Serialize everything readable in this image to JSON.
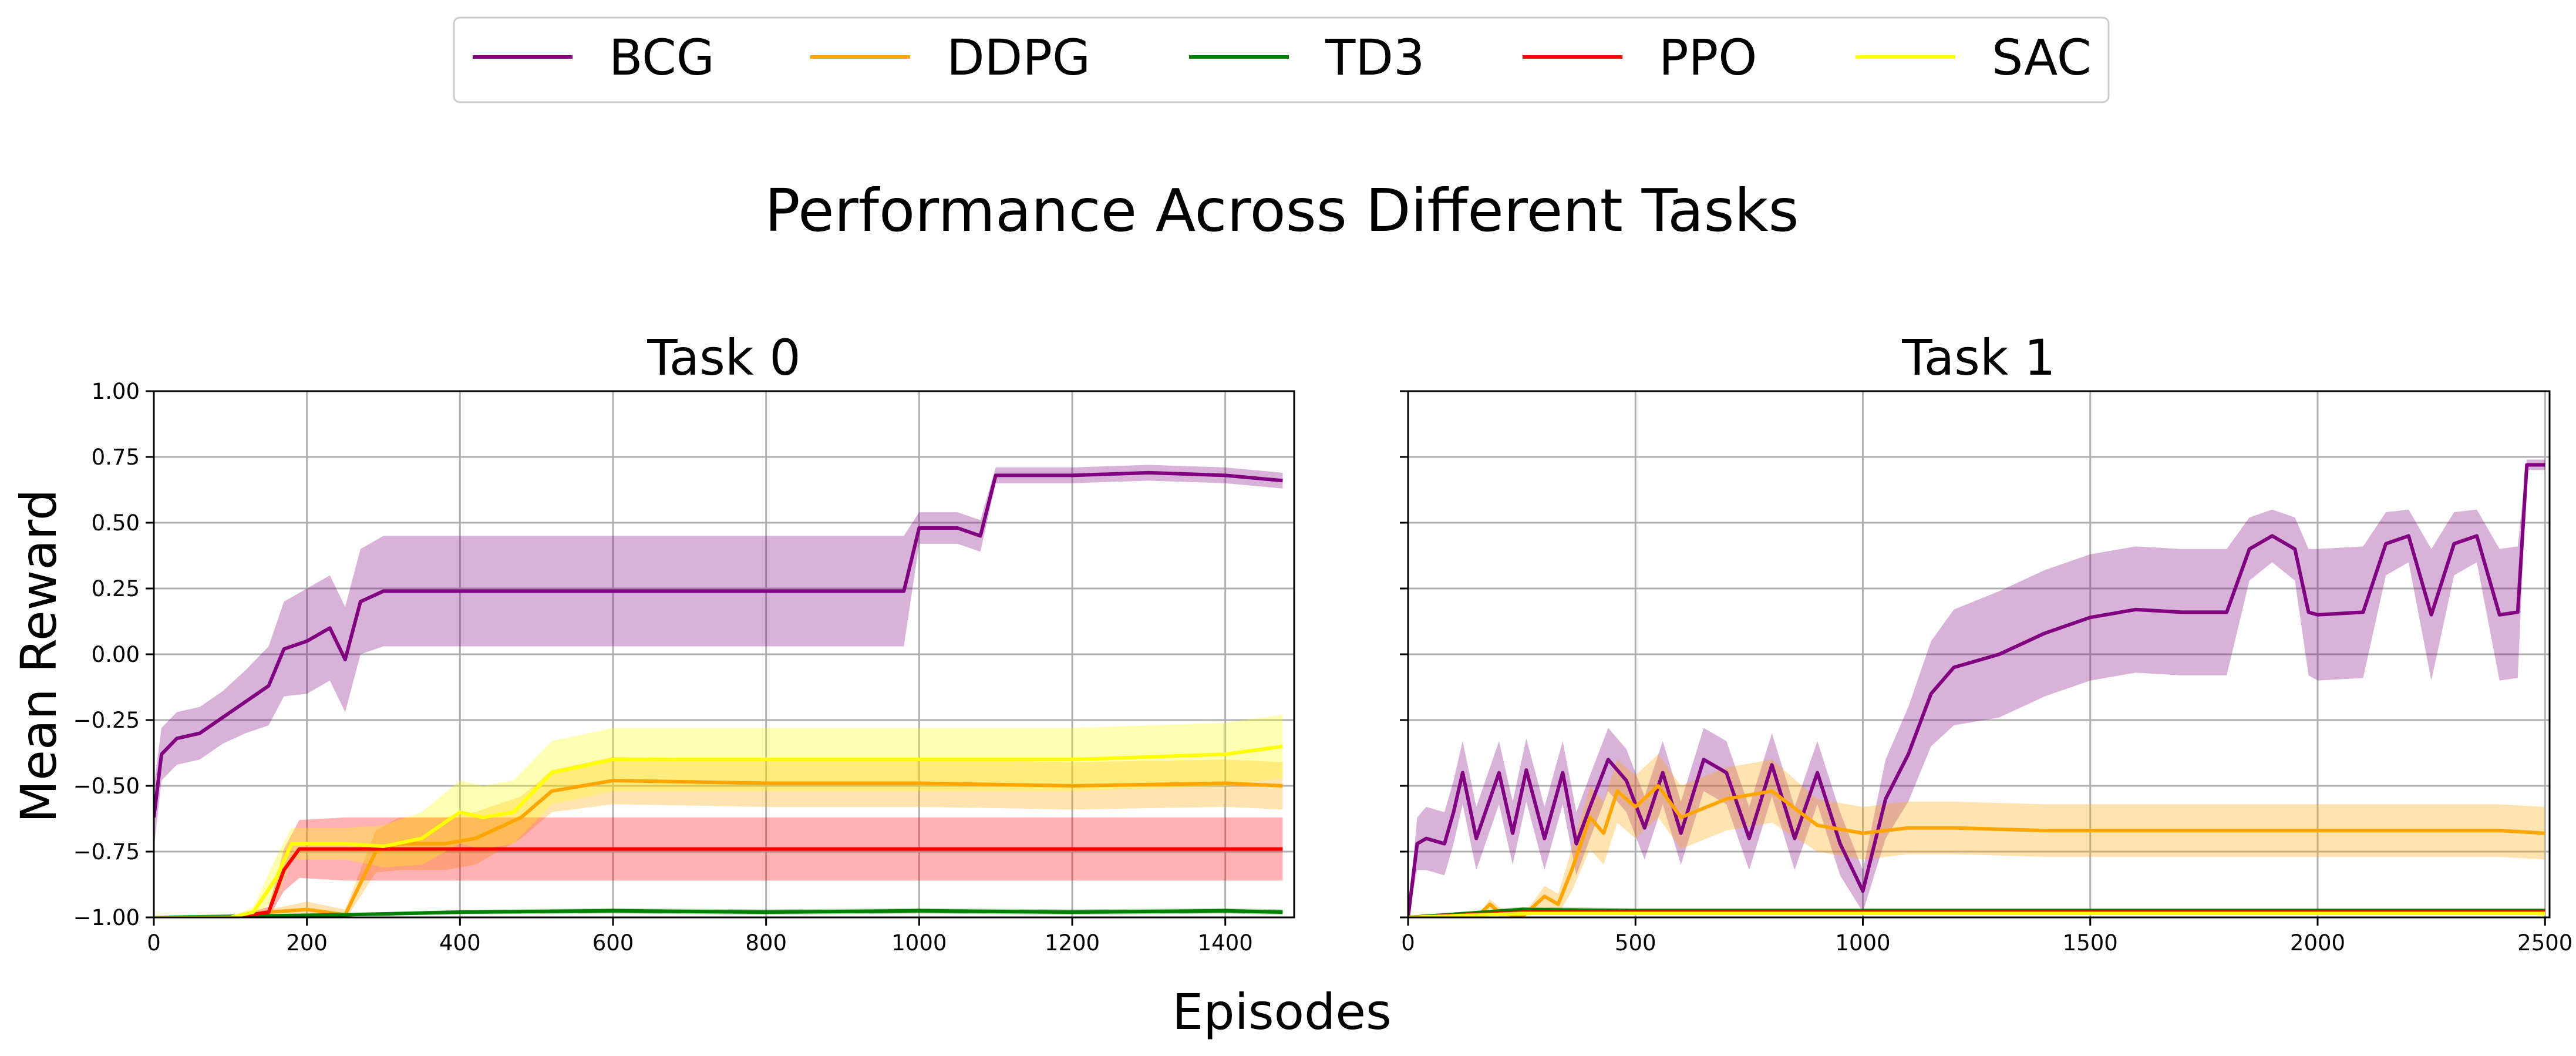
{
  "figure": {
    "suptitle": "Performance Across Different Tasks",
    "xlabel": "Episodes",
    "ylabel": "Mean Reward"
  },
  "legend": {
    "placement": "top-center",
    "items": [
      {
        "label": "BCG",
        "color": "#800080"
      },
      {
        "label": "DDPG",
        "color": "#FFA500"
      },
      {
        "label": "TD3",
        "color": "#008000"
      },
      {
        "label": "PPO",
        "color": "#FF0000"
      },
      {
        "label": "SAC",
        "color": "#FFFF00"
      }
    ]
  },
  "chart_data": [
    {
      "type": "line",
      "title": "Task 0",
      "xlim": [
        0,
        1490
      ],
      "ylim": [
        -1.0,
        1.0
      ],
      "xticks": [
        0,
        200,
        400,
        600,
        800,
        1000,
        1200,
        1400
      ],
      "yticks": [
        -1.0,
        -0.75,
        -0.5,
        -0.25,
        0.0,
        0.25,
        0.5,
        0.75,
        1.0
      ],
      "ytick_labels": [
        "−1.00",
        "−0.75",
        "−0.50",
        "−0.25",
        "0.00",
        "0.25",
        "0.50",
        "0.75",
        "1.00"
      ],
      "grid": true,
      "series": [
        {
          "name": "BCG",
          "color": "#800080",
          "x": [
            0,
            10,
            30,
            60,
            90,
            120,
            150,
            170,
            200,
            230,
            250,
            270,
            300,
            400,
            600,
            800,
            980,
            1000,
            1050,
            1080,
            1100,
            1200,
            1300,
            1400,
            1475
          ],
          "y": [
            -0.62,
            -0.38,
            -0.32,
            -0.3,
            -0.24,
            -0.18,
            -0.12,
            0.02,
            0.05,
            0.1,
            -0.02,
            0.2,
            0.24,
            0.24,
            0.24,
            0.24,
            0.24,
            0.48,
            0.48,
            0.45,
            0.68,
            0.68,
            0.69,
            0.68,
            0.66
          ],
          "band": [
            0.12,
            0.1,
            0.1,
            0.1,
            0.1,
            0.12,
            0.15,
            0.18,
            0.2,
            0.2,
            0.2,
            0.2,
            0.21,
            0.21,
            0.21,
            0.21,
            0.21,
            0.06,
            0.06,
            0.06,
            0.03,
            0.03,
            0.03,
            0.03,
            0.03
          ]
        },
        {
          "name": "DDPG",
          "color": "#FFA500",
          "x": [
            0,
            100,
            150,
            200,
            250,
            290,
            320,
            380,
            420,
            480,
            520,
            600,
            800,
            1000,
            1200,
            1400,
            1475
          ],
          "y": [
            -1.0,
            -1.0,
            -0.98,
            -0.97,
            -0.99,
            -0.75,
            -0.72,
            -0.72,
            -0.7,
            -0.62,
            -0.52,
            -0.48,
            -0.49,
            -0.49,
            -0.5,
            -0.49,
            -0.5
          ],
          "band": [
            0.0,
            0.0,
            0.01,
            0.03,
            0.02,
            0.08,
            0.1,
            0.1,
            0.1,
            0.08,
            0.08,
            0.09,
            0.09,
            0.09,
            0.09,
            0.09,
            0.09
          ]
        },
        {
          "name": "TD3",
          "color": "#008000",
          "x": [
            0,
            250,
            400,
            600,
            800,
            1000,
            1200,
            1400,
            1475
          ],
          "y": [
            -1.0,
            -0.99,
            -0.98,
            -0.975,
            -0.98,
            -0.975,
            -0.98,
            -0.975,
            -0.98
          ],
          "band": [
            0.0,
            0.005,
            0.008,
            0.01,
            0.01,
            0.01,
            0.01,
            0.01,
            0.01
          ]
        },
        {
          "name": "PPO",
          "color": "#FF0000",
          "x": [
            0,
            100,
            150,
            170,
            190,
            250,
            400,
            600,
            800,
            1000,
            1200,
            1400,
            1475
          ],
          "y": [
            -1.0,
            -1.0,
            -0.98,
            -0.82,
            -0.74,
            -0.74,
            -0.74,
            -0.74,
            -0.74,
            -0.74,
            -0.74,
            -0.74,
            -0.74
          ],
          "band": [
            0.0,
            0.0,
            0.02,
            0.08,
            0.11,
            0.12,
            0.12,
            0.12,
            0.12,
            0.12,
            0.12,
            0.12,
            0.12
          ]
        },
        {
          "name": "SAC",
          "color": "#FFFF00",
          "x": [
            0,
            100,
            130,
            160,
            180,
            250,
            300,
            350,
            400,
            430,
            470,
            520,
            600,
            800,
            1000,
            1200,
            1400,
            1475
          ],
          "y": [
            -1.0,
            -1.0,
            -0.98,
            -0.85,
            -0.72,
            -0.72,
            -0.73,
            -0.7,
            -0.6,
            -0.62,
            -0.6,
            -0.45,
            -0.4,
            -0.4,
            -0.4,
            -0.4,
            -0.38,
            -0.35
          ],
          "band": [
            0.0,
            0.0,
            0.02,
            0.08,
            0.06,
            0.06,
            0.08,
            0.1,
            0.12,
            0.12,
            0.12,
            0.12,
            0.12,
            0.12,
            0.12,
            0.12,
            0.12,
            0.12
          ]
        }
      ]
    },
    {
      "type": "line",
      "title": "Task 1",
      "xlim": [
        0,
        2510
      ],
      "ylim": [
        -1.0,
        1.0
      ],
      "xticks": [
        0,
        500,
        1000,
        1500,
        2000,
        2500
      ],
      "yticks": [
        -1.0,
        -0.75,
        -0.5,
        -0.25,
        0.0,
        0.25,
        0.5,
        0.75,
        1.0
      ],
      "ytick_labels": [],
      "grid": true,
      "series": [
        {
          "name": "BCG",
          "color": "#800080",
          "x": [
            0,
            20,
            40,
            80,
            100,
            120,
            150,
            200,
            230,
            260,
            300,
            340,
            370,
            400,
            440,
            480,
            520,
            560,
            600,
            650,
            700,
            750,
            800,
            850,
            900,
            950,
            1000,
            1050,
            1100,
            1150,
            1200,
            1300,
            1400,
            1500,
            1600,
            1700,
            1800,
            1850,
            1900,
            1950,
            1980,
            2000,
            2100,
            2150,
            2200,
            2250,
            2300,
            2350,
            2400,
            2440,
            2460,
            2500
          ],
          "y": [
            -1.0,
            -0.72,
            -0.7,
            -0.72,
            -0.6,
            -0.45,
            -0.7,
            -0.45,
            -0.68,
            -0.44,
            -0.7,
            -0.45,
            -0.72,
            -0.58,
            -0.4,
            -0.48,
            -0.66,
            -0.45,
            -0.68,
            -0.4,
            -0.45,
            -0.7,
            -0.42,
            -0.7,
            -0.45,
            -0.72,
            -0.9,
            -0.55,
            -0.38,
            -0.15,
            -0.05,
            0.0,
            0.08,
            0.14,
            0.17,
            0.16,
            0.16,
            0.4,
            0.45,
            0.4,
            0.16,
            0.15,
            0.16,
            0.42,
            0.45,
            0.15,
            0.42,
            0.45,
            0.15,
            0.16,
            0.72,
            0.72
          ],
          "band": [
            0.0,
            0.1,
            0.12,
            0.12,
            0.12,
            0.12,
            0.12,
            0.12,
            0.12,
            0.12,
            0.12,
            0.12,
            0.12,
            0.12,
            0.12,
            0.12,
            0.12,
            0.12,
            0.12,
            0.12,
            0.12,
            0.12,
            0.12,
            0.12,
            0.12,
            0.12,
            0.08,
            0.15,
            0.18,
            0.2,
            0.22,
            0.24,
            0.24,
            0.24,
            0.24,
            0.24,
            0.24,
            0.12,
            0.1,
            0.12,
            0.24,
            0.25,
            0.25,
            0.12,
            0.1,
            0.25,
            0.12,
            0.1,
            0.25,
            0.25,
            0.02,
            0.02
          ]
        },
        {
          "name": "DDPG",
          "color": "#FFA500",
          "x": [
            0,
            150,
            180,
            200,
            250,
            300,
            330,
            360,
            400,
            430,
            460,
            500,
            550,
            600,
            700,
            800,
            900,
            1000,
            1100,
            1200,
            1400,
            1600,
            1800,
            2000,
            2200,
            2400,
            2500
          ],
          "y": [
            -1.0,
            -1.0,
            -0.95,
            -0.98,
            -1.0,
            -0.92,
            -0.95,
            -0.82,
            -0.62,
            -0.68,
            -0.52,
            -0.58,
            -0.5,
            -0.62,
            -0.55,
            -0.52,
            -0.65,
            -0.68,
            -0.66,
            -0.66,
            -0.67,
            -0.67,
            -0.67,
            -0.67,
            -0.67,
            -0.67,
            -0.68
          ],
          "band": [
            0.0,
            0.0,
            0.02,
            0.02,
            0.0,
            0.04,
            0.04,
            0.08,
            0.12,
            0.12,
            0.12,
            0.12,
            0.12,
            0.12,
            0.12,
            0.12,
            0.1,
            0.1,
            0.1,
            0.1,
            0.1,
            0.1,
            0.1,
            0.1,
            0.1,
            0.1,
            0.1
          ]
        },
        {
          "name": "TD3",
          "color": "#008000",
          "x": [
            0,
            250,
            500,
            1000,
            1500,
            2000,
            2500
          ],
          "y": [
            -1.0,
            -0.97,
            -0.975,
            -0.975,
            -0.975,
            -0.975,
            -0.975
          ],
          "band": [
            0.0,
            0.01,
            0.01,
            0.01,
            0.01,
            0.01,
            0.01
          ]
        },
        {
          "name": "PPO",
          "color": "#FF0000",
          "x": [
            0,
            250,
            500,
            1000,
            1500,
            2000,
            2500
          ],
          "y": [
            -1.0,
            -0.98,
            -0.98,
            -0.98,
            -0.98,
            -0.98,
            -0.98
          ],
          "band": [
            0.0,
            0.01,
            0.01,
            0.01,
            0.01,
            0.01,
            0.01
          ]
        },
        {
          "name": "SAC",
          "color": "#FFFF00",
          "x": [
            0,
            250,
            500,
            1000,
            1500,
            2000,
            2500
          ],
          "y": [
            -1.0,
            -0.985,
            -0.985,
            -0.985,
            -0.985,
            -0.985,
            -0.985
          ],
          "band": [
            0.0,
            0.005,
            0.005,
            0.005,
            0.005,
            0.005,
            0.005
          ]
        }
      ]
    }
  ]
}
